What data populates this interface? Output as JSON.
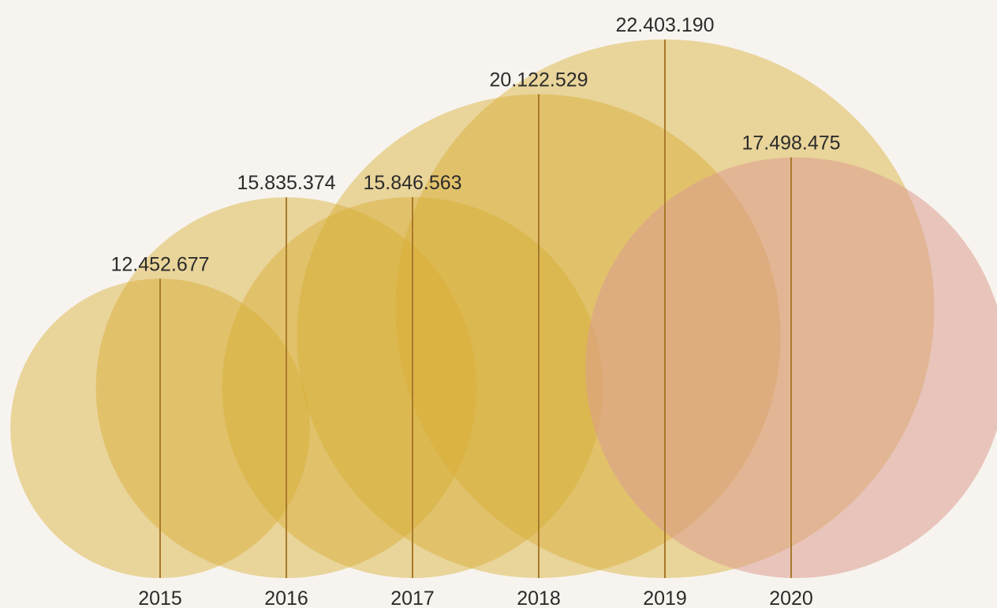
{
  "chart_data": {
    "type": "bubble",
    "categories": [
      "2015",
      "2016",
      "2017",
      "2018",
      "2019",
      "2020"
    ],
    "values": [
      12452677,
      15835374,
      15846563,
      20122529,
      22403190,
      17498475
    ],
    "value_labels": [
      "12.452.677",
      "15.835.374",
      "15.846.563",
      "20.122.529",
      "22.403.190",
      "17.498.475"
    ],
    "title": "",
    "xlabel": "",
    "ylabel": "",
    "ylim": [
      0,
      22403190
    ],
    "grid": false,
    "legend": "none"
  },
  "colors": {
    "background": "#f7f4ef",
    "bubble_gold": "#d6ad32",
    "bubble_gold_dark": "#c79b22",
    "bubble_rose": "#dc9c8f",
    "stem": "#a9792b",
    "text": "#2b2b2b"
  }
}
